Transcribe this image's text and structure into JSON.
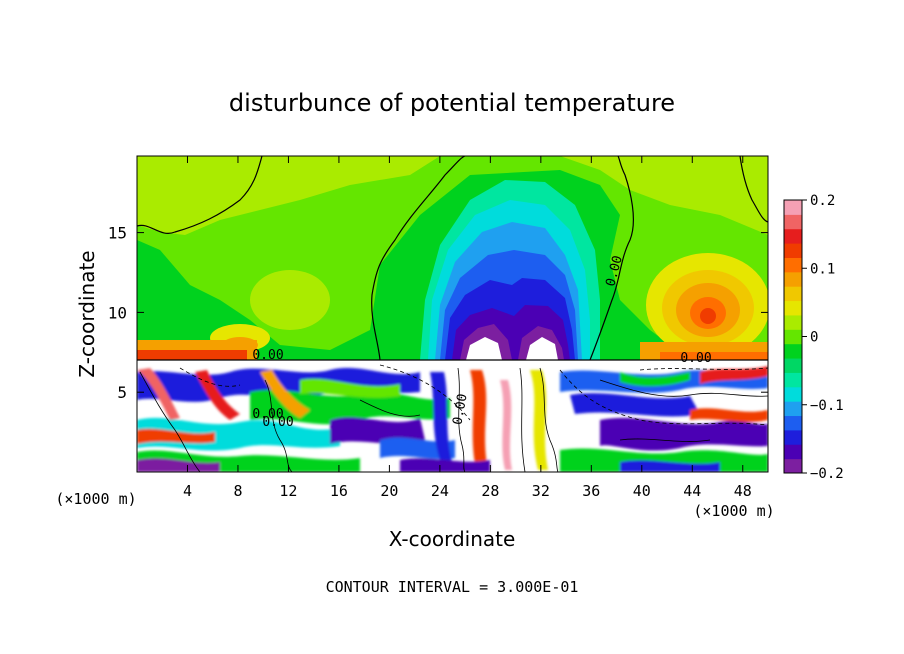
{
  "chart_data": {
    "type": "heatmap",
    "title": "disturbunce of potential temperature",
    "xlabel": "X-coordinate",
    "ylabel": "Z-coordinate",
    "x_unit": "(×1000 m)",
    "x_unit_right": "(×1000 m)",
    "xlim": [
      0,
      50
    ],
    "ylim": [
      0,
      19.8
    ],
    "x_ticks": [
      "4",
      "8",
      "12",
      "16",
      "20",
      "24",
      "28",
      "32",
      "36",
      "40",
      "44",
      "48"
    ],
    "y_ticks": [
      "5",
      "10",
      "15"
    ],
    "colorbar": {
      "range": [
        -0.2,
        0.2
      ],
      "tick_labels": [
        "0.2",
        "0.1",
        "0",
        "-0.1",
        "-0.2"
      ],
      "colors": [
        "#7c1fa0",
        "#4b00b4",
        "#1e1edc",
        "#1d5ef0",
        "#1fa0f0",
        "#00dcdc",
        "#00e6a0",
        "#00d764",
        "#00d21e",
        "#64e600",
        "#aaeb00",
        "#e6e600",
        "#f0c800",
        "#f5a000",
        "#ff6e00",
        "#f03c00",
        "#e61e1e",
        "#f06464",
        "#f5a0b4"
      ]
    },
    "contour_labels": [
      "0.00",
      "0.00",
      "0.00",
      "0.00",
      "0.00",
      "0.00"
    ],
    "contour_interval_text": "CONTOUR INTERVAL = 3.000E-01"
  }
}
